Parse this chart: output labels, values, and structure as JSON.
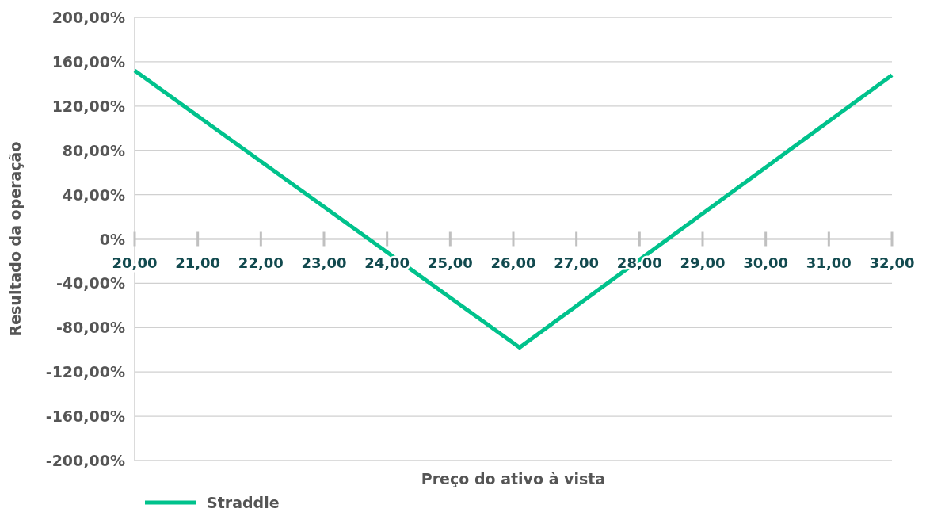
{
  "chart_data": {
    "type": "line",
    "xlabel": "Preço do ativo à vista",
    "ylabel": "Resultado da operação",
    "series": [
      {
        "name": "Straddle",
        "color": "#00c28c",
        "x": [
          20,
          26.1,
          32
        ],
        "values": [
          152,
          -98,
          148
        ]
      }
    ],
    "xlim": [
      20,
      32
    ],
    "xticks": [
      {
        "value": 20,
        "label": "20,00"
      },
      {
        "value": 21,
        "label": "21,00"
      },
      {
        "value": 22,
        "label": "22,00"
      },
      {
        "value": 23,
        "label": "23,00"
      },
      {
        "value": 24,
        "label": "24,00"
      },
      {
        "value": 25,
        "label": "25,00"
      },
      {
        "value": 26,
        "label": "26,00"
      },
      {
        "value": 27,
        "label": "27,00"
      },
      {
        "value": 28,
        "label": "28,00"
      },
      {
        "value": 29,
        "label": "29,00"
      },
      {
        "value": 30,
        "label": "30,00"
      },
      {
        "value": 31,
        "label": "31,00"
      },
      {
        "value": 32,
        "label": "32,00"
      }
    ],
    "ylim": [
      -200,
      200
    ],
    "yticks": [
      {
        "value": -200,
        "label": "-200,00%"
      },
      {
        "value": -160,
        "label": "-160,00%"
      },
      {
        "value": -120,
        "label": "-120,00%"
      },
      {
        "value": -80,
        "label": "-80,00%"
      },
      {
        "value": -40,
        "label": "-40,00%"
      },
      {
        "value": 0,
        "label": "0%"
      },
      {
        "value": 40,
        "label": "40,00%"
      },
      {
        "value": 80,
        "label": "80,00%"
      },
      {
        "value": 120,
        "label": "120,00%"
      },
      {
        "value": 160,
        "label": "160,00%"
      },
      {
        "value": 200,
        "label": "200,00%"
      }
    ],
    "grid": "y",
    "legend": "bottom left",
    "marker": "none",
    "line_style": "solid"
  }
}
